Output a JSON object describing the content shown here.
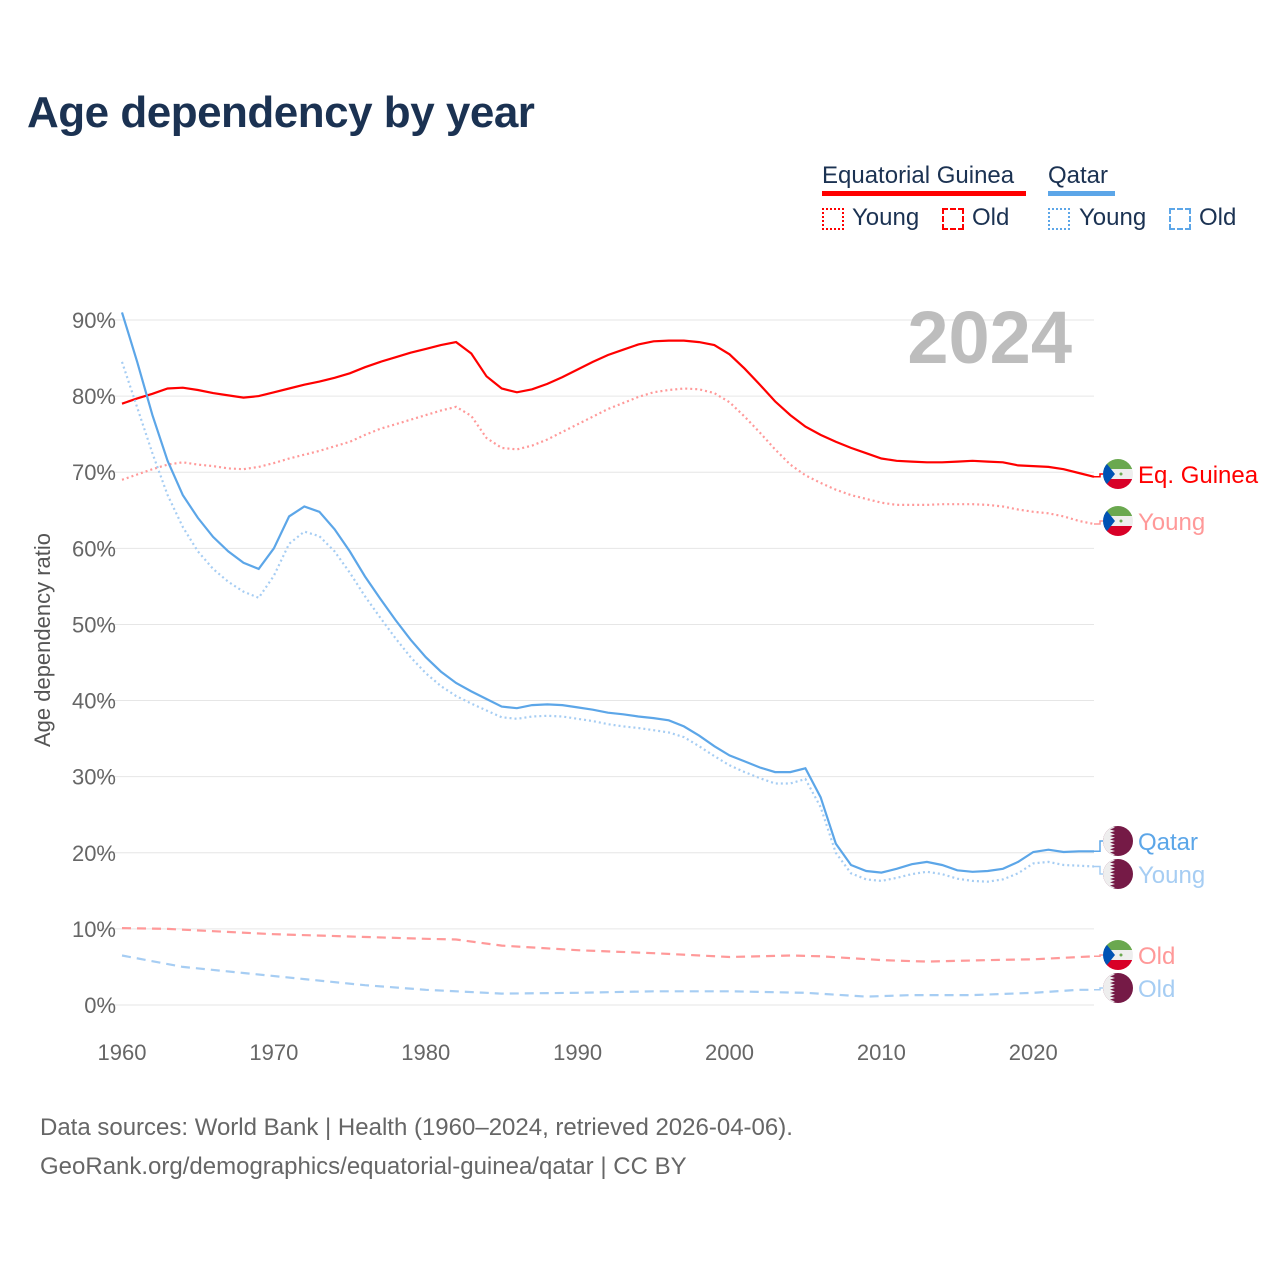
{
  "title": "Age dependency by year",
  "legend": {
    "groups": [
      {
        "name": "Equatorial Guinea",
        "color": "#ff0000",
        "light": "#ff9999",
        "young": "Young",
        "old": "Old"
      },
      {
        "name": "Qatar",
        "color": "#5ca6e8",
        "light": "#a6cdf3",
        "young": "Young",
        "old": "Old"
      }
    ]
  },
  "year_badge": "2024",
  "source_lines": [
    "Data sources: World Bank | Health (1960–2024, retrieved 2026-04-06).",
    "GeoRank.org/demographics/equatorial-guinea/qatar | CC BY"
  ],
  "chart_data": {
    "type": "line",
    "title": "Age dependency by year",
    "xlabel": "",
    "ylabel": "Age dependency ratio",
    "xlim": [
      1960,
      2024
    ],
    "ylim": [
      0,
      90
    ],
    "x_ticks": [
      1960,
      1970,
      1980,
      1990,
      2000,
      2010,
      2020
    ],
    "x_tick_labels": [
      "1960",
      "1970",
      "1980",
      "1990",
      "2000",
      "2010",
      "2020"
    ],
    "y_ticks": [
      0,
      10,
      20,
      30,
      40,
      50,
      60,
      70,
      80,
      90
    ],
    "y_tick_labels": [
      "0%",
      "10%",
      "20%",
      "30%",
      "40%",
      "50%",
      "60%",
      "70%",
      "80%",
      "90%"
    ],
    "grid": true,
    "legend_position": "top-right",
    "series": [
      {
        "name": "Equatorial Guinea",
        "end_label": "Eq. Guinea",
        "color": "#ff0000",
        "style": "solid",
        "start_year": 1960,
        "values": [
          79.0,
          79.7,
          80.3,
          81.0,
          81.1,
          80.8,
          80.4,
          80.1,
          79.8,
          80.0,
          80.5,
          81.0,
          81.5,
          81.9,
          82.4,
          83.0,
          83.8,
          84.5,
          85.1,
          85.7,
          86.2,
          86.7,
          87.1,
          85.6,
          82.6,
          81.0,
          80.5,
          80.9,
          81.6,
          82.5,
          83.5,
          84.5,
          85.4,
          86.1,
          86.8,
          87.2,
          87.3,
          87.3,
          87.1,
          86.7,
          85.5,
          83.6,
          81.5,
          79.3,
          77.5,
          76.0,
          74.9,
          74.0,
          73.2,
          72.5,
          71.8,
          71.5,
          71.4,
          71.3,
          71.3,
          71.4,
          71.5,
          71.4,
          71.3,
          70.9,
          70.8,
          70.7,
          70.4,
          69.9,
          69.4
        ]
      },
      {
        "name": "Equatorial Guinea Young",
        "end_label": "Young",
        "color": "#ff9999",
        "style": "dotted",
        "start_year": 1960,
        "values": [
          69.0,
          69.7,
          70.4,
          71.0,
          71.3,
          71.0,
          70.8,
          70.5,
          70.4,
          70.7,
          71.2,
          71.8,
          72.3,
          72.8,
          73.4,
          74.0,
          74.9,
          75.7,
          76.3,
          76.9,
          77.5,
          78.1,
          78.6,
          77.4,
          74.5,
          73.2,
          73.0,
          73.5,
          74.3,
          75.3,
          76.3,
          77.3,
          78.3,
          79.1,
          79.9,
          80.5,
          80.8,
          81.0,
          80.9,
          80.4,
          79.2,
          77.3,
          75.2,
          73.0,
          71.0,
          69.6,
          68.6,
          67.7,
          67.0,
          66.5,
          66.0,
          65.7,
          65.7,
          65.7,
          65.8,
          65.8,
          65.8,
          65.7,
          65.5,
          65.1,
          64.8,
          64.6,
          64.2,
          63.6,
          63.2
        ]
      },
      {
        "name": "Equatorial Guinea Old",
        "end_label": "Old",
        "color": "#ff9999",
        "style": "dashed",
        "x": [
          1960,
          1963,
          1966,
          1970,
          1975,
          1980,
          1982,
          1985,
          1990,
          1995,
          2000,
          2004,
          2006,
          2010,
          2013,
          2017,
          2020,
          2024
        ],
        "values": [
          10.1,
          10.0,
          9.7,
          9.3,
          9.0,
          8.7,
          8.6,
          7.8,
          7.2,
          6.8,
          6.3,
          6.5,
          6.4,
          5.9,
          5.7,
          5.9,
          6.0,
          6.4
        ]
      },
      {
        "name": "Qatar",
        "end_label": "Qatar",
        "color": "#5ca6e8",
        "style": "solid",
        "start_year": 1960,
        "values": [
          91.0,
          84.5,
          77.5,
          71.5,
          67.0,
          64.0,
          61.5,
          59.6,
          58.1,
          57.3,
          60.0,
          64.2,
          65.5,
          64.8,
          62.5,
          59.6,
          56.3,
          53.4,
          50.6,
          48.0,
          45.7,
          43.8,
          42.3,
          41.2,
          40.2,
          39.2,
          39.0,
          39.4,
          39.5,
          39.4,
          39.1,
          38.8,
          38.4,
          38.2,
          37.9,
          37.7,
          37.4,
          36.6,
          35.4,
          34.0,
          32.8,
          32.0,
          31.2,
          30.6,
          30.6,
          31.1,
          27.3,
          21.2,
          18.4,
          17.6,
          17.4,
          17.9,
          18.5,
          18.8,
          18.4,
          17.7,
          17.5,
          17.6,
          17.9,
          18.8,
          20.1,
          20.4,
          20.1,
          20.2,
          20.2
        ]
      },
      {
        "name": "Qatar Young",
        "end_label": "Young",
        "color": "#a6cdf3",
        "style": "dotted",
        "start_year": 1960,
        "values": [
          84.5,
          78.5,
          72.5,
          67.0,
          62.8,
          59.6,
          57.3,
          55.6,
          54.3,
          53.5,
          56.4,
          60.6,
          62.2,
          61.6,
          59.6,
          56.8,
          53.7,
          50.9,
          48.2,
          45.7,
          43.6,
          41.9,
          40.6,
          39.6,
          38.7,
          37.8,
          37.6,
          37.9,
          38.0,
          37.9,
          37.6,
          37.3,
          36.9,
          36.6,
          36.4,
          36.1,
          35.8,
          35.2,
          34.0,
          32.7,
          31.5,
          30.6,
          29.8,
          29.1,
          29.1,
          29.7,
          26.0,
          20.0,
          17.3,
          16.5,
          16.3,
          16.7,
          17.2,
          17.5,
          17.2,
          16.6,
          16.3,
          16.2,
          16.5,
          17.3,
          18.6,
          18.8,
          18.4,
          18.3,
          18.2
        ]
      },
      {
        "name": "Qatar Old",
        "end_label": "Old",
        "color": "#a6cdf3",
        "style": "dashed",
        "x": [
          1960,
          1964,
          1968,
          1972,
          1976,
          1980,
          1985,
          1990,
          1995,
          2000,
          2005,
          2009,
          2012,
          2016,
          2020,
          2023,
          2024
        ],
        "values": [
          6.5,
          5.0,
          4.2,
          3.4,
          2.6,
          2.0,
          1.5,
          1.6,
          1.8,
          1.8,
          1.6,
          1.1,
          1.3,
          1.3,
          1.6,
          2.0,
          2.0
        ]
      }
    ]
  }
}
